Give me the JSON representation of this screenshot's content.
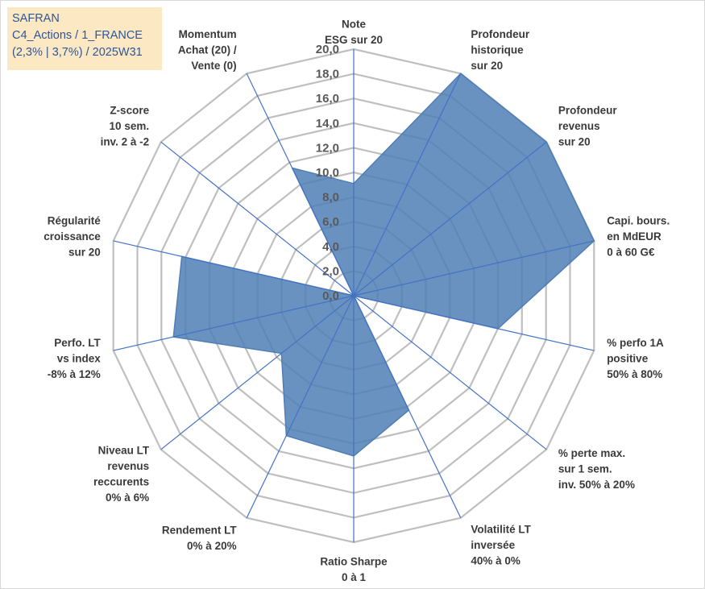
{
  "header": {
    "line1": "SAFRAN",
    "line2": "C4_Actions / 1_FRANCE",
    "line3": "(2,3% | 3,7%) / 2025W31"
  },
  "colors": {
    "fill": "#4f7fb5",
    "axis": "#4472c4",
    "grid": "#bfbfbf",
    "header_bg": "#fce9c4",
    "header_text": "#2f5597"
  },
  "chart_data": {
    "type": "radar",
    "title": "",
    "r_range": [
      0,
      20
    ],
    "r_step": 2,
    "tick_labels": [
      "0,0",
      "2,0",
      "4,0",
      "6,0",
      "8,0",
      "10,0",
      "12,0",
      "14,0",
      "16,0",
      "18,0",
      "20,0"
    ],
    "grid": true,
    "axes": [
      {
        "label": [
          "Note",
          "ESG sur 20"
        ],
        "value": 9.1
      },
      {
        "label": [
          "Profondeur",
          "historique",
          "sur 20"
        ],
        "value": 20.0
      },
      {
        "label": [
          "Profondeur",
          "revenus",
          "sur 20"
        ],
        "value": 20.0
      },
      {
        "label": [
          "Capi. bours.",
          "en MdEUR",
          "0 à 60 G€"
        ],
        "value": 20.0
      },
      {
        "label": [
          "% perfo 1A",
          "positive",
          "50% à 80%"
        ],
        "value": 12.0
      },
      {
        "label": [
          "% perte max.",
          "sur 1 sem.",
          "inv. 50% à 20%"
        ],
        "value": 0.0
      },
      {
        "label": [
          "Volatilité LT",
          "inversée",
          "40% à 0%"
        ],
        "value": 10.3
      },
      {
        "label": [
          "Ratio Sharpe",
          "0 à 1"
        ],
        "value": 13.0
      },
      {
        "label": [
          "Rendement LT",
          "0% à 20%"
        ],
        "value": 12.6
      },
      {
        "label": [
          "Niveau LT",
          "revenus",
          "reccurents",
          "0% à 6%"
        ],
        "value": 7.5
      },
      {
        "label": [
          "Perfo. LT",
          "vs index",
          "-8% à 12%"
        ],
        "value": 15.0
      },
      {
        "label": [
          "Régularité",
          "croissance",
          "sur 20"
        ],
        "value": 14.3
      },
      {
        "label": [
          "Z-score",
          "10 sem.",
          "inv. 2 à -2"
        ],
        "value": 0.0
      },
      {
        "label": [
          "Momentum",
          "Achat (20) /",
          "Vente (0)"
        ],
        "value": 11.5
      }
    ]
  }
}
